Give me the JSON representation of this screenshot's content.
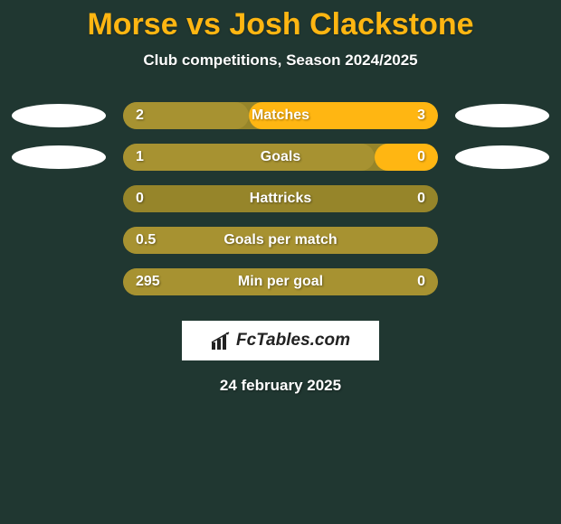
{
  "title": "Morse vs Josh Clackstone",
  "subtitle": "Club competitions, Season 2024/2025",
  "date": "24 february 2025",
  "logo_text": "FcTables.com",
  "colors": {
    "background": "#203731",
    "accent": "#FFB612",
    "bar_track": "#96852a",
    "bar_left_fill": "#a79231",
    "bar_right_fill": "#FFB612",
    "text": "#ffffff"
  },
  "rows": [
    {
      "label": "Matches",
      "left_val": "2",
      "right_val": "3",
      "left_pct": 40,
      "right_pct": 60,
      "show_left_ellipse": true,
      "show_right_ellipse": true
    },
    {
      "label": "Goals",
      "left_val": "1",
      "right_val": "0",
      "left_pct": 80,
      "right_pct": 20,
      "show_left_ellipse": true,
      "show_right_ellipse": true
    },
    {
      "label": "Hattricks",
      "left_val": "0",
      "right_val": "0",
      "left_pct": 0,
      "right_pct": 0,
      "show_left_ellipse": false,
      "show_right_ellipse": false
    },
    {
      "label": "Goals per match",
      "left_val": "0.5",
      "right_val": "",
      "left_pct": 100,
      "right_pct": 0,
      "show_left_ellipse": false,
      "show_right_ellipse": false
    },
    {
      "label": "Min per goal",
      "left_val": "295",
      "right_val": "0",
      "left_pct": 100,
      "right_pct": 0,
      "show_left_ellipse": false,
      "show_right_ellipse": false
    }
  ]
}
